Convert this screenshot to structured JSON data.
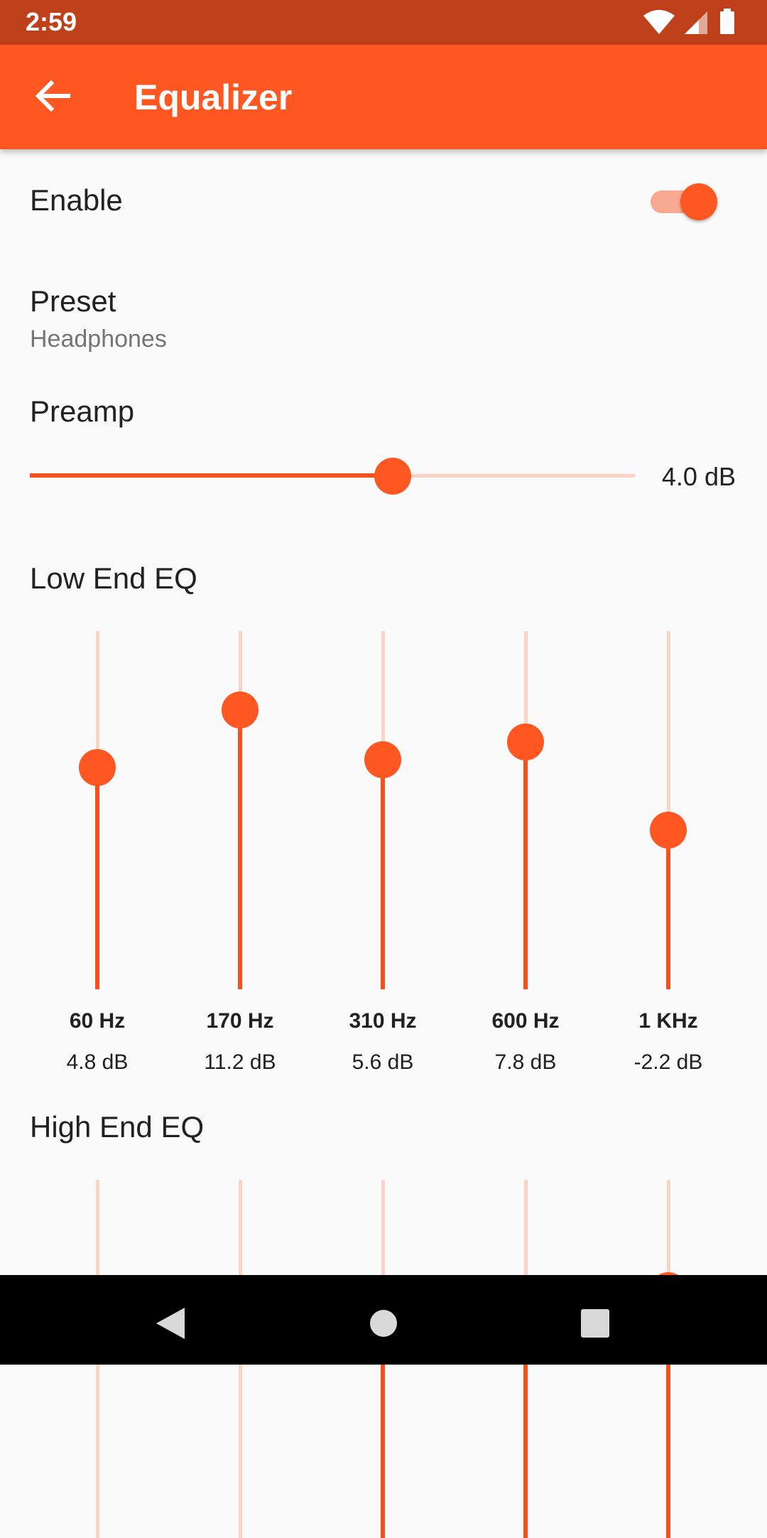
{
  "status_bar": {
    "time": "2:59"
  },
  "app_bar": {
    "title": "Equalizer",
    "back_icon": "arrow-back-icon"
  },
  "enable": {
    "label": "Enable",
    "on": true
  },
  "preset": {
    "label": "Preset",
    "value": "Headphones"
  },
  "preamp": {
    "label": "Preamp",
    "value_text": "4.0 dB",
    "level_fraction": 0.6
  },
  "low_end": {
    "title": "Low End EQ",
    "bands": [
      {
        "freq": "60 Hz",
        "db": "4.8 dB",
        "level_fraction": 0.62
      },
      {
        "freq": "170 Hz",
        "db": "11.2 dB",
        "level_fraction": 0.78
      },
      {
        "freq": "310 Hz",
        "db": "5.6 dB",
        "level_fraction": 0.64
      },
      {
        "freq": "600 Hz",
        "db": "7.8 dB",
        "level_fraction": 0.69
      },
      {
        "freq": "1 KHz",
        "db": "-2.2 dB",
        "level_fraction": 0.445
      }
    ]
  },
  "high_end": {
    "title": "High End EQ",
    "bands": [
      {
        "level_fraction": 0.0
      },
      {
        "level_fraction": 0.0
      },
      {
        "level_fraction": 0.56
      },
      {
        "level_fraction": 0.65
      },
      {
        "level_fraction": 0.69
      }
    ]
  },
  "colors": {
    "accent": "#ff5722",
    "status_bar": "#bf411b",
    "track_inactive": "#fbd4c6"
  },
  "nav_bar": {
    "icons": [
      "back-triangle-icon",
      "home-circle-icon",
      "recents-square-icon"
    ]
  }
}
